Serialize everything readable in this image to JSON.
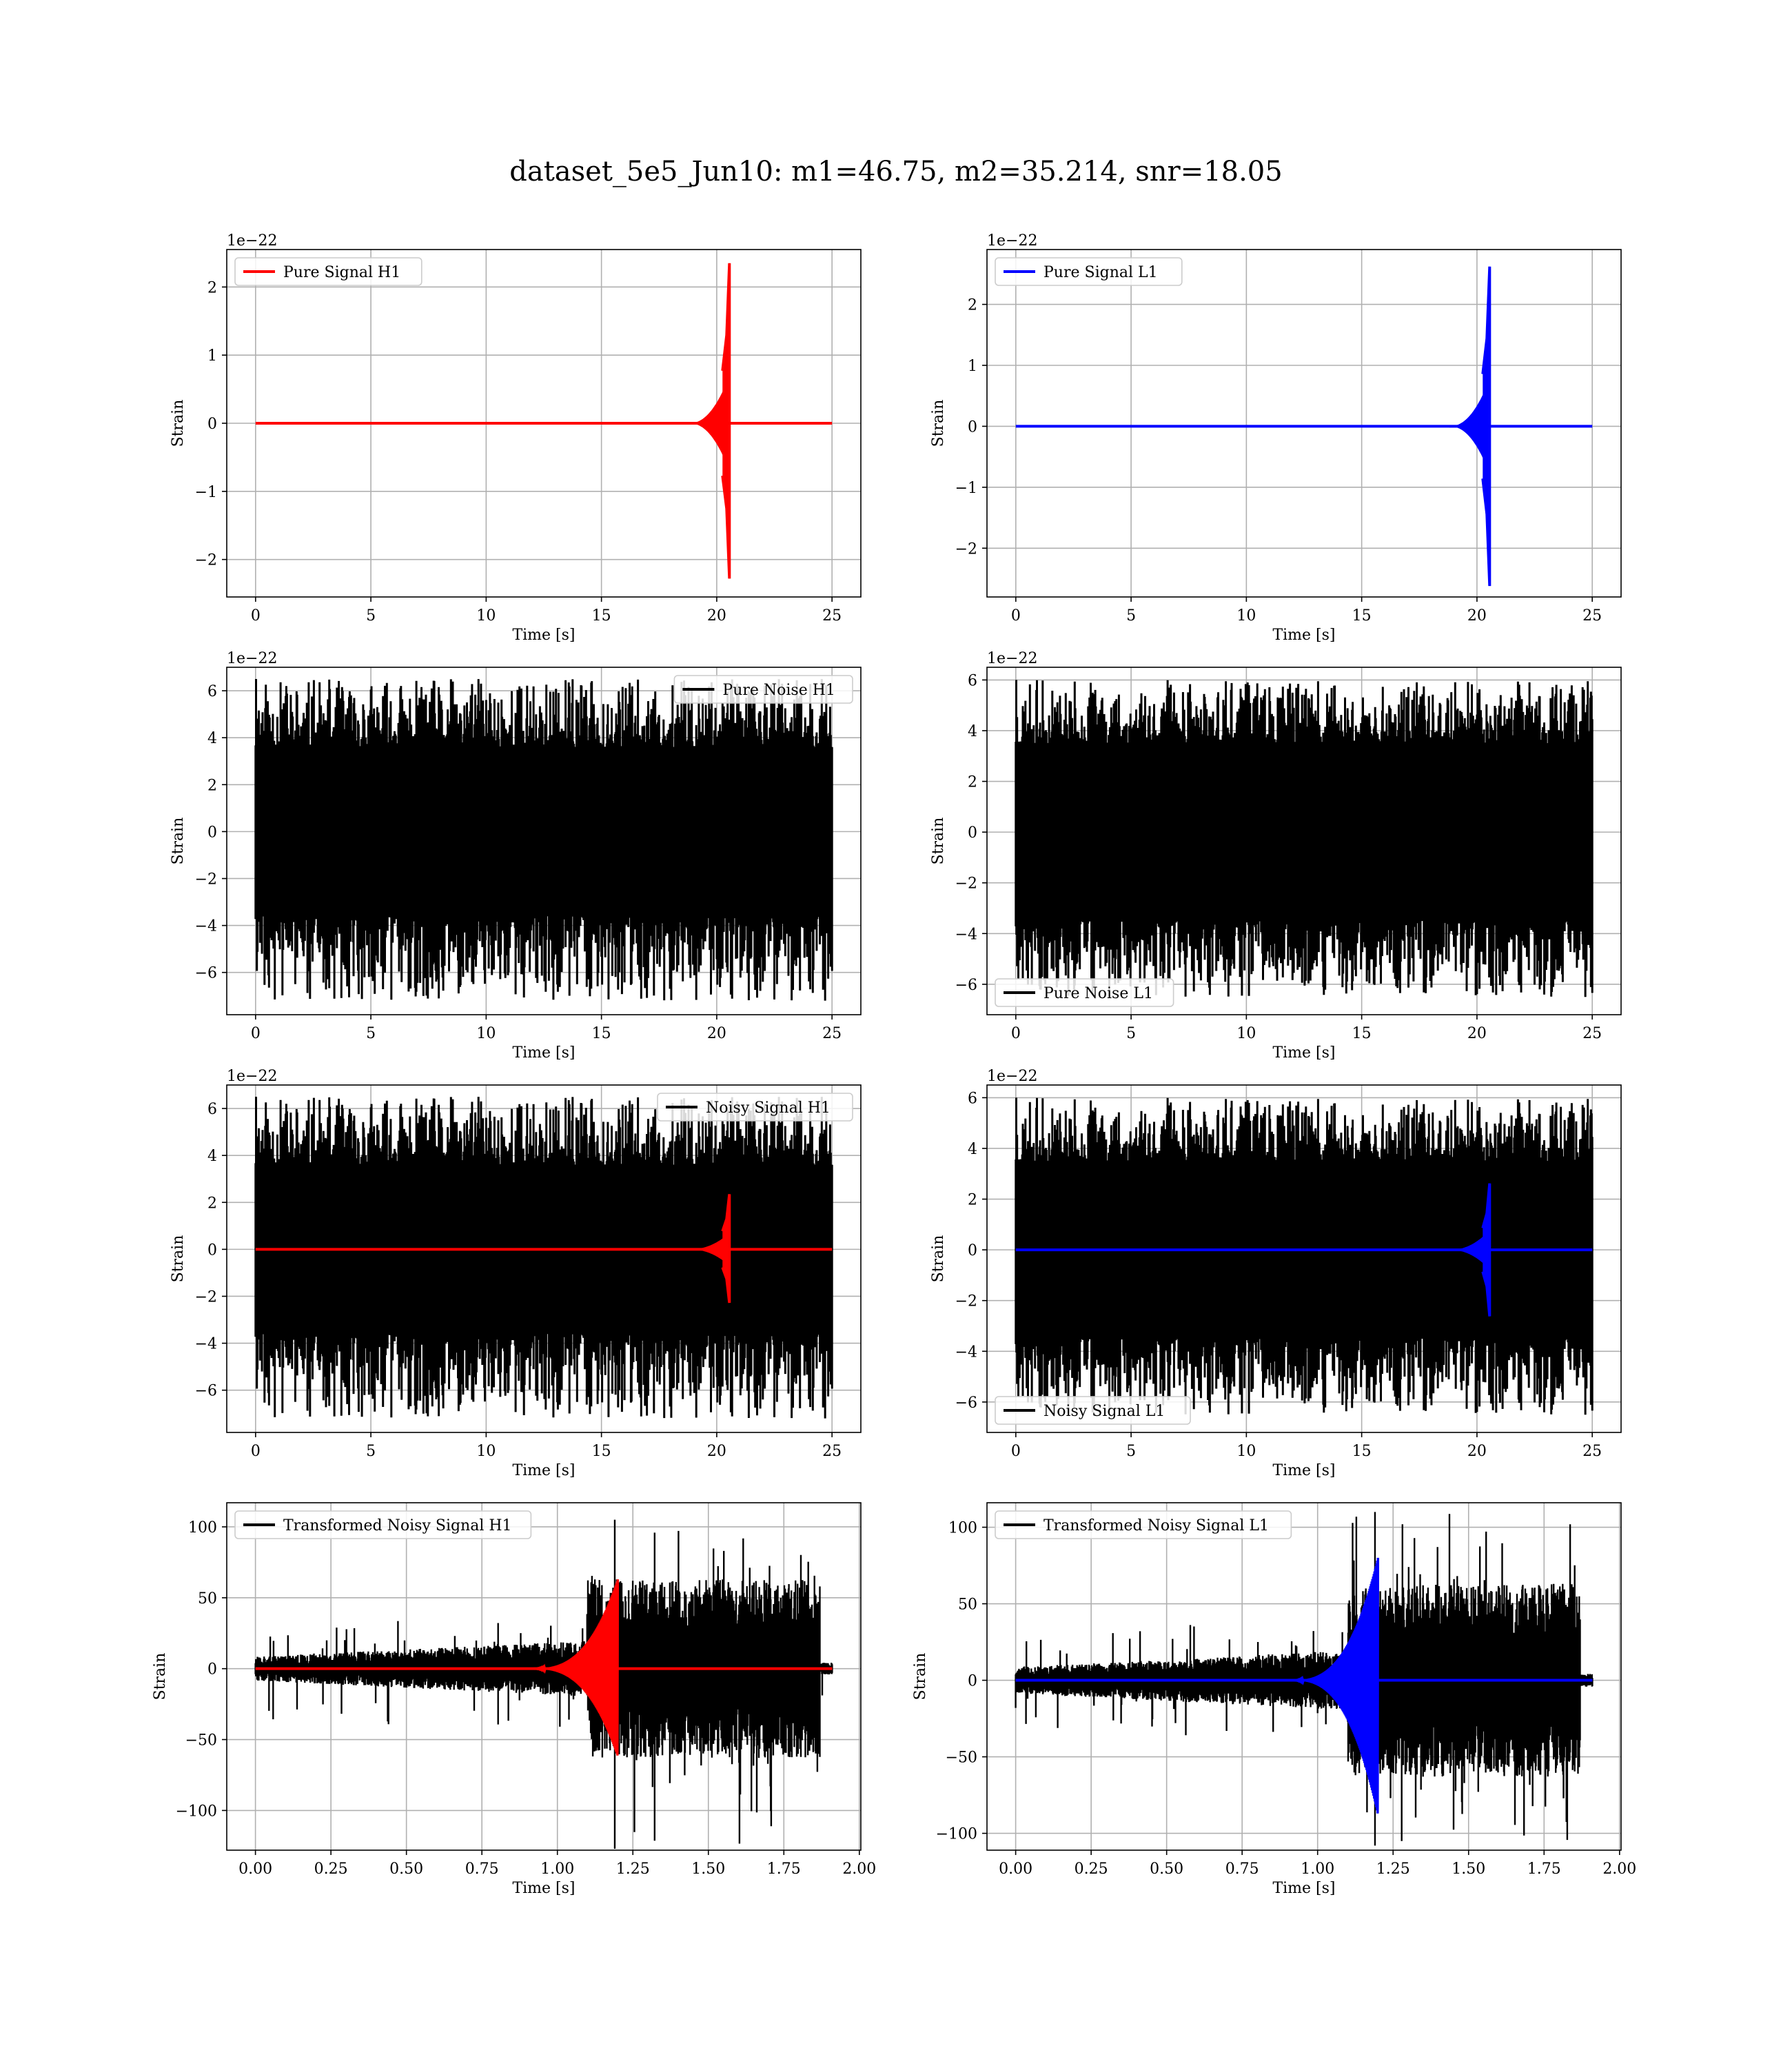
{
  "title": "dataset_5e5_Jun10: m1=46.75, m2=35.214, snr=18.05",
  "chart_data": [
    {
      "type": "line",
      "id": "ps_h1",
      "legend": [
        {
          "name": "Pure Signal H1",
          "color": "#ff0000"
        }
      ],
      "legend_loc": "upper-left",
      "ylabel": "Strain",
      "xlabel": "Time [s]",
      "offset_label": "1e−22",
      "xlim": [
        -1.25,
        26.25
      ],
      "ylim": [
        -2.55,
        2.55
      ],
      "xticks": [
        0,
        5,
        10,
        15,
        20,
        25
      ],
      "xticklabels": [
        "0",
        "5",
        "10",
        "15",
        "20",
        "25"
      ],
      "yticks": [
        -2,
        -1,
        0,
        1,
        2
      ],
      "yticklabels": [
        "−2",
        "−1",
        "0",
        "1",
        "2"
      ],
      "grid": true,
      "series": [
        {
          "kind": "chirp",
          "color": "#ff0000",
          "x_end": 25,
          "x_merge": 20.55,
          "peak_pos": 2.35,
          "peak_neg": -2.28,
          "env": 0.7,
          "t_start": 18.8
        }
      ]
    },
    {
      "type": "line",
      "id": "ps_l1",
      "legend": [
        {
          "name": "Pure Signal L1",
          "color": "#0000ff"
        }
      ],
      "legend_loc": "upper-left",
      "ylabel": "Strain",
      "xlabel": "Time [s]",
      "offset_label": "1e−22",
      "xlim": [
        -1.25,
        26.25
      ],
      "ylim": [
        -2.8,
        2.9
      ],
      "xticks": [
        0,
        5,
        10,
        15,
        20,
        25
      ],
      "xticklabels": [
        "0",
        "5",
        "10",
        "15",
        "20",
        "25"
      ],
      "yticks": [
        -2,
        -1,
        0,
        1,
        2
      ],
      "yticklabels": [
        "−2",
        "−1",
        "0",
        "1",
        "2"
      ],
      "grid": true,
      "series": [
        {
          "kind": "chirp",
          "color": "#0000ff",
          "x_end": 25,
          "x_merge": 20.55,
          "peak_pos": 2.62,
          "peak_neg": -2.62,
          "env": 0.78,
          "t_start": 18.8
        }
      ]
    },
    {
      "type": "line",
      "id": "pn_h1",
      "legend": [
        {
          "name": "Pure Noise H1",
          "color": "#000000"
        }
      ],
      "legend_loc": "upper-right",
      "ylabel": "Strain",
      "xlabel": "Time [s]",
      "offset_label": "1e−22",
      "xlim": [
        -1.25,
        26.25
      ],
      "ylim": [
        -7.8,
        7.0
      ],
      "xticks": [
        0,
        5,
        10,
        15,
        20,
        25
      ],
      "xticklabels": [
        "0",
        "5",
        "10",
        "15",
        "20",
        "25"
      ],
      "yticks": [
        -6,
        -4,
        -2,
        0,
        2,
        4,
        6
      ],
      "yticklabels": [
        "−6",
        "−4",
        "−2",
        "0",
        "2",
        "4",
        "6"
      ],
      "grid": true,
      "series": [
        {
          "kind": "noise",
          "color": "#000000",
          "x_end": 25,
          "band": 3.6,
          "spike_max": 6.5,
          "spike_min": -7.2,
          "seed": 11
        }
      ]
    },
    {
      "type": "line",
      "id": "pn_l1",
      "legend": [
        {
          "name": "Pure Noise L1",
          "color": "#000000"
        }
      ],
      "legend_loc": "lower-left",
      "ylabel": "Strain",
      "xlabel": "Time [s]",
      "offset_label": "1e−22",
      "xlim": [
        -1.25,
        26.25
      ],
      "ylim": [
        -7.2,
        6.5
      ],
      "xticks": [
        0,
        5,
        10,
        15,
        20,
        25
      ],
      "xticklabels": [
        "0",
        "5",
        "10",
        "15",
        "20",
        "25"
      ],
      "yticks": [
        -6,
        -4,
        -2,
        0,
        2,
        4,
        6
      ],
      "yticklabels": [
        "−6",
        "−4",
        "−2",
        "0",
        "2",
        "4",
        "6"
      ],
      "grid": true,
      "series": [
        {
          "kind": "noise",
          "color": "#000000",
          "x_end": 25,
          "band": 3.5,
          "spike_max": 6.0,
          "spike_min": -6.5,
          "seed": 23
        }
      ]
    },
    {
      "type": "line",
      "id": "ns_h1",
      "legend": [
        {
          "name": "Noisy Signal H1",
          "color": "#000000"
        }
      ],
      "legend_loc": "upper-right",
      "ylabel": "Strain",
      "xlabel": "Time [s]",
      "offset_label": "1e−22",
      "xlim": [
        -1.25,
        26.25
      ],
      "ylim": [
        -7.8,
        7.0
      ],
      "xticks": [
        0,
        5,
        10,
        15,
        20,
        25
      ],
      "xticklabels": [
        "0",
        "5",
        "10",
        "15",
        "20",
        "25"
      ],
      "yticks": [
        -6,
        -4,
        -2,
        0,
        2,
        4,
        6
      ],
      "yticklabels": [
        "−6",
        "−4",
        "−2",
        "0",
        "2",
        "4",
        "6"
      ],
      "grid": true,
      "series": [
        {
          "kind": "noise",
          "color": "#000000",
          "x_end": 25,
          "band": 3.6,
          "spike_max": 6.5,
          "spike_min": -7.2,
          "seed": 11
        },
        {
          "kind": "chirp",
          "color": "#ff0000",
          "x_end": 25,
          "x_merge": 20.55,
          "peak_pos": 2.35,
          "peak_neg": -2.28,
          "env": 0.7,
          "t_start": 18.8
        }
      ]
    },
    {
      "type": "line",
      "id": "ns_l1",
      "legend": [
        {
          "name": "Noisy Signal L1",
          "color": "#000000"
        }
      ],
      "legend_loc": "lower-left",
      "ylabel": "Strain",
      "xlabel": "Time [s]",
      "offset_label": "1e−22",
      "xlim": [
        -1.25,
        26.25
      ],
      "ylim": [
        -7.2,
        6.5
      ],
      "xticks": [
        0,
        5,
        10,
        15,
        20,
        25
      ],
      "xticklabels": [
        "0",
        "5",
        "10",
        "15",
        "20",
        "25"
      ],
      "yticks": [
        -6,
        -4,
        -2,
        0,
        2,
        4,
        6
      ],
      "yticklabels": [
        "−6",
        "−4",
        "−2",
        "0",
        "2",
        "4",
        "6"
      ],
      "grid": true,
      "series": [
        {
          "kind": "noise",
          "color": "#000000",
          "x_end": 25,
          "band": 3.5,
          "spike_max": 6.0,
          "spike_min": -6.5,
          "seed": 23
        },
        {
          "kind": "chirp",
          "color": "#0000ff",
          "x_end": 25,
          "x_merge": 20.55,
          "peak_pos": 2.62,
          "peak_neg": -2.62,
          "env": 0.78,
          "t_start": 18.8
        }
      ]
    },
    {
      "type": "line",
      "id": "tn_h1",
      "legend": [
        {
          "name": "Transformed Noisy Signal H1",
          "color": "#000000"
        }
      ],
      "legend_loc": "upper-left",
      "ylabel": "Strain",
      "xlabel": "Time [s]",
      "offset_label": "",
      "xlim": [
        -0.095,
        2.005
      ],
      "ylim": [
        -128,
        117
      ],
      "xticks": [
        0,
        0.25,
        0.5,
        0.75,
        1.0,
        1.25,
        1.5,
        1.75,
        2.0
      ],
      "xticklabels": [
        "0.00",
        "0.25",
        "0.50",
        "0.75",
        "1.00",
        "1.25",
        "1.50",
        "1.75",
        "2.00"
      ],
      "yticks": [
        -100,
        -50,
        0,
        50,
        100
      ],
      "yticklabels": [
        "−100",
        "−50",
        "0",
        "50",
        "100"
      ],
      "grid": true,
      "series": [
        {
          "kind": "tnoise",
          "color": "#000000",
          "x_end": 1.91,
          "x_rise": 1.1,
          "x_cut": 1.87,
          "base": 6,
          "late": 45,
          "spike_max": 105,
          "spike_min": -127,
          "seed": 5
        },
        {
          "kind": "tchirp",
          "color": "#ff0000",
          "x_end": 1.91,
          "x_merge": 1.2,
          "peak_pos": 63,
          "peak_neg": -62,
          "t_start": 0.9
        }
      ]
    },
    {
      "type": "line",
      "id": "tn_l1",
      "legend": [
        {
          "name": "Transformed Noisy Signal L1",
          "color": "#000000"
        }
      ],
      "legend_loc": "upper-left",
      "ylabel": "Strain",
      "xlabel": "Time [s]",
      "offset_label": "",
      "xlim": [
        -0.095,
        2.005
      ],
      "ylim": [
        -111,
        116
      ],
      "xticks": [
        0,
        0.25,
        0.5,
        0.75,
        1.0,
        1.25,
        1.5,
        1.75,
        2.0
      ],
      "xticklabels": [
        "0.00",
        "0.25",
        "0.50",
        "0.75",
        "1.00",
        "1.25",
        "1.50",
        "1.75",
        "2.00"
      ],
      "yticks": [
        -100,
        -50,
        0,
        50,
        100
      ],
      "yticklabels": [
        "−100",
        "−50",
        "0",
        "50",
        "100"
      ],
      "grid": true,
      "series": [
        {
          "kind": "tnoise",
          "color": "#000000",
          "x_end": 1.91,
          "x_rise": 1.1,
          "x_cut": 1.87,
          "base": 6,
          "late": 45,
          "spike_max": 110,
          "spike_min": -108,
          "seed": 9
        },
        {
          "kind": "tchirp",
          "color": "#0000ff",
          "x_end": 1.91,
          "x_merge": 1.2,
          "peak_pos": 80,
          "peak_neg": -88,
          "t_start": 0.9
        }
      ]
    }
  ]
}
